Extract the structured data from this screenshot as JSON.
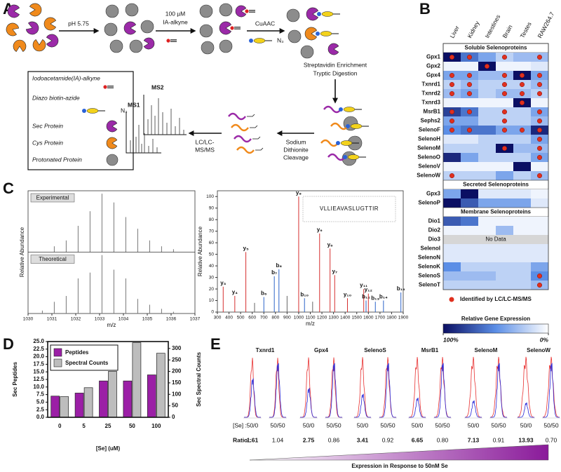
{
  "panel_letters": [
    "A",
    "B",
    "C",
    "D",
    "E"
  ],
  "panel_a": {
    "ph": "pH  5.75",
    "probe": [
      "100 µM",
      "IA-alkyne"
    ],
    "click": "CuAAC",
    "azide": "N₃",
    "enrichment": [
      "Streptavidin Enrichment",
      "Tryptic Digestion"
    ],
    "cleavage": [
      "Sodium",
      "Dithionite",
      "Cleavage"
    ],
    "analysis": [
      "LC/LC-",
      "MS/MS"
    ],
    "ms": [
      "MS1",
      "MS2"
    ],
    "legend": [
      "Iodoacetamide(IA)-alkyne",
      "Diazo biotin-azide",
      "Sec Protein",
      "Cys Protein",
      "Protonated Protein"
    ]
  },
  "chart_data": [
    {
      "type": "heatmap",
      "columns": [
        "Liver",
        "Kidney",
        "Intestines",
        "Brain",
        "Testes",
        "RAW264.7"
      ],
      "colormap": [
        "#ffffff",
        "#5b8ee6",
        "#0b0f63"
      ],
      "dot_color": "#e0301e",
      "null_color": "#d6d6d6",
      "clim": [
        0,
        100
      ],
      "colorbar_title": "Relative Gene Expression",
      "colorbar_ticks": [
        {
          "value": 100,
          "label": "100%"
        },
        {
          "value": 0,
          "label": "0%"
        }
      ],
      "identified_label": "Identified by LC/LC-MS/MS",
      "no_data_label": "No Data",
      "groups": [
        {
          "name": "Soluble Selenoproteins",
          "rows": [
            "Gpx1",
            "Gpx2",
            "Gpx4",
            "Txnrd1",
            "Txnrd2",
            "Txnrd3",
            "MsrB1",
            "Sephs2",
            "SelenoF",
            "SelenoH",
            "SelenoM",
            "SelenoO",
            "SelenoV",
            "SelenoW"
          ],
          "values": [
            [
              100,
              60,
              40,
              20,
              30,
              30
            ],
            [
              5,
              5,
              100,
              5,
              5,
              10
            ],
            [
              40,
              40,
              30,
              30,
              100,
              40
            ],
            [
              20,
              30,
              20,
              20,
              20,
              30
            ],
            [
              30,
              40,
              20,
              30,
              30,
              20
            ],
            [
              5,
              5,
              5,
              5,
              100,
              5
            ],
            [
              80,
              60,
              20,
              20,
              20,
              40
            ],
            [
              40,
              40,
              20,
              20,
              20,
              30
            ],
            [
              50,
              60,
              60,
              40,
              40,
              90
            ],
            [
              10,
              10,
              20,
              20,
              20,
              40
            ],
            [
              20,
              20,
              20,
              100,
              30,
              30
            ],
            [
              90,
              40,
              20,
              20,
              20,
              40
            ],
            [
              5,
              5,
              5,
              5,
              100,
              5
            ],
            [
              20,
              20,
              20,
              40,
              20,
              30
            ]
          ],
          "identified": [
            [
              true,
              true,
              false,
              true,
              false,
              true
            ],
            [
              false,
              false,
              true,
              false,
              false,
              false
            ],
            [
              true,
              true,
              false,
              true,
              true,
              true
            ],
            [
              true,
              true,
              false,
              true,
              true,
              true
            ],
            [
              true,
              true,
              false,
              true,
              true,
              true
            ],
            [
              false,
              false,
              false,
              false,
              true,
              false
            ],
            [
              true,
              true,
              false,
              true,
              false,
              true
            ],
            [
              true,
              false,
              false,
              true,
              false,
              true
            ],
            [
              true,
              true,
              false,
              true,
              true,
              true
            ],
            [
              false,
              false,
              false,
              false,
              false,
              true
            ],
            [
              false,
              false,
              false,
              true,
              false,
              true
            ],
            [
              false,
              false,
              false,
              false,
              false,
              true
            ],
            [
              false,
              false,
              false,
              false,
              false,
              false
            ],
            [
              true,
              false,
              false,
              false,
              false,
              true
            ]
          ]
        },
        {
          "name": "Secreted Selenoproteins",
          "rows": [
            "Gpx3",
            "SelenoP"
          ],
          "values": [
            [
              40,
              100,
              10,
              10,
              10,
              5
            ],
            [
              100,
              70,
              40,
              40,
              40,
              10
            ]
          ],
          "identified": [
            [
              false,
              false,
              false,
              false,
              false,
              false
            ],
            [
              false,
              false,
              false,
              false,
              false,
              false
            ]
          ]
        },
        {
          "name": "Membrane Selenoproteins",
          "rows": [
            "Dio1",
            "Dio2",
            "Dio3",
            "SelenoI",
            "SelenoN",
            "SelenoK",
            "SelenoS",
            "SelenoT"
          ],
          "values": [
            [
              70,
              60,
              5,
              5,
              5,
              5
            ],
            [
              5,
              5,
              5,
              30,
              5,
              5
            ],
            [
              null,
              null,
              null,
              null,
              null,
              null
            ],
            [
              10,
              10,
              10,
              10,
              10,
              10
            ],
            [
              10,
              10,
              10,
              10,
              10,
              10
            ],
            [
              50,
              20,
              20,
              20,
              20,
              40
            ],
            [
              30,
              30,
              30,
              20,
              20,
              50
            ],
            [
              20,
              20,
              20,
              20,
              20,
              30
            ]
          ],
          "identified": [
            [
              false,
              false,
              false,
              false,
              false,
              false
            ],
            [
              false,
              false,
              false,
              false,
              false,
              false
            ],
            [
              false,
              false,
              false,
              false,
              false,
              false
            ],
            [
              false,
              false,
              false,
              false,
              false,
              false
            ],
            [
              false,
              false,
              false,
              false,
              false,
              false
            ],
            [
              false,
              false,
              false,
              false,
              false,
              false
            ],
            [
              false,
              false,
              false,
              false,
              false,
              true
            ],
            [
              false,
              false,
              false,
              false,
              false,
              true
            ]
          ]
        }
      ]
    },
    {
      "type": "spectrum",
      "xlabel": "m/z",
      "ylabel": "Relative Abundance",
      "xlim": [
        1030,
        1037
      ],
      "xticks": [
        1030,
        1031,
        1032,
        1033,
        1034,
        1035,
        1036,
        1037
      ],
      "ylim": [
        0,
        105
      ],
      "series": [
        {
          "name": "Experimental",
          "color": "#777777",
          "x": [
            1031.1,
            1031.6,
            1032.1,
            1032.6,
            1033.1,
            1033.6,
            1034.1,
            1034.6,
            1035.1,
            1035.6,
            1036.1
          ],
          "values": [
            10,
            20,
            45,
            70,
            100,
            85,
            60,
            40,
            20,
            10,
            5
          ]
        },
        {
          "name": "Theoretical",
          "color": "#777777",
          "x": [
            1030.6,
            1031.1,
            1031.6,
            1032.1,
            1032.6,
            1033.1,
            1033.6,
            1034.1,
            1034.6,
            1035.1,
            1035.6,
            1036.1
          ],
          "values": [
            5,
            20,
            30,
            60,
            70,
            100,
            75,
            60,
            25,
            15,
            8,
            3
          ]
        }
      ]
    },
    {
      "type": "spectrum",
      "xlabel": "m/z",
      "ylabel": "Relative Abundance",
      "xlim": [
        300,
        1900
      ],
      "xticks": [
        300,
        400,
        500,
        600,
        700,
        800,
        900,
        1000,
        1100,
        1200,
        1300,
        1400,
        1500,
        1600,
        1700,
        1800,
        1900
      ],
      "ylim": [
        0,
        105
      ],
      "yticks": [
        0,
        10,
        20,
        30,
        40,
        50,
        60,
        70,
        80,
        90,
        100
      ],
      "color": "#666666",
      "ion_colors": {
        "y": "#d62f2f",
        "b": "#2b63c8"
      },
      "sequence": "VLLIEAVASLUGTTIR",
      "x": [
        350,
        450,
        545,
        620,
        700,
        790,
        830,
        900,
        1000,
        1050,
        1120,
        1180,
        1270,
        1310,
        1420,
        1560,
        1580,
        1600,
        1660,
        1730,
        1880
      ],
      "values": [
        22,
        14,
        52,
        8,
        13,
        31,
        37,
        14,
        100,
        12,
        9,
        68,
        55,
        32,
        12,
        20,
        10,
        16,
        9,
        10,
        17
      ],
      "labels": [
        "y₃",
        "y₄",
        "y₅",
        null,
        "b₆",
        "b₇",
        "b₈",
        null,
        "y₈",
        "b₁₀",
        null,
        "y₉",
        "y₆",
        "y₇",
        "y₁₀",
        "y₁₁",
        "b₁₂",
        "y₁₂",
        "b₁₃",
        "b₁₄",
        "b₁₆"
      ]
    },
    {
      "type": "bar",
      "xlabel": "[Se] (uM)",
      "ylabel": "Sec Peptides",
      "y2label": "Sec Spectral Counts",
      "categories": [
        "0",
        "5",
        "25",
        "50",
        "100"
      ],
      "series": [
        {
          "name": "Peptides",
          "color": "#9b1fa6",
          "values": [
            7,
            8,
            12,
            12,
            14
          ]
        },
        {
          "name": "Spectral Counts",
          "color": "#bdbdbd",
          "axis": "y2",
          "values": [
            90,
            129,
            200,
            325,
            279
          ]
        }
      ],
      "ylim": [
        0,
        25
      ],
      "yticks": [
        {
          "value": 0,
          "label": "0.0"
        },
        2.5,
        {
          "value": 5,
          "label": "5.0"
        },
        7.5,
        {
          "value": 10,
          "label": "10.0"
        },
        12.5,
        {
          "value": 15,
          "label": "15.0"
        },
        17.5,
        {
          "value": 20,
          "label": "20.0"
        },
        22.5,
        {
          "value": 25,
          "label": "25.0"
        }
      ],
      "y2lim": [
        0,
        330
      ],
      "y2ticks": [
        0,
        50,
        100,
        150,
        200,
        250,
        300
      ],
      "legend": "upper left"
    }
  ],
  "panel_e": {
    "proteins": [
      "Txnrd1",
      "Gpx4",
      "SelenoS",
      "MsrB1",
      "SelenoM",
      "SelenoW"
    ],
    "se_label": "[Se] :",
    "conditions": [
      "50/0",
      "50/50"
    ],
    "ratio_label": "Ratio :",
    "ratios": [
      [
        "1.61",
        "1.04"
      ],
      [
        "2.75",
        "0.86"
      ],
      [
        "3.41",
        "0.92"
      ],
      [
        "6.65",
        "0.80"
      ],
      [
        "7.13",
        "0.91"
      ],
      [
        "13.93",
        "0.70"
      ]
    ],
    "gradient_label": "Expression in Response to 50nM Se"
  }
}
